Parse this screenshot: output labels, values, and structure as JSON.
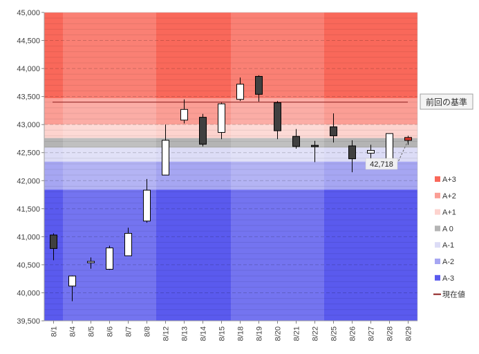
{
  "chart_data": {
    "type": "candlestick",
    "ylim": [
      39500,
      45000
    ],
    "categories": [
      "8/1",
      "8/4",
      "8/5",
      "8/6",
      "8/7",
      "8/8",
      "8/12",
      "8/13",
      "8/14",
      "8/15",
      "8/18",
      "8/19",
      "8/20",
      "8/21",
      "8/22",
      "8/25",
      "8/26",
      "8/27",
      "8/28",
      "8/29"
    ],
    "ohlc": [
      {
        "date": "8/1",
        "open": 41030,
        "high": 41060,
        "low": 40580,
        "close": 40790
      },
      {
        "date": "8/4",
        "open": 40120,
        "high": 40310,
        "low": 39850,
        "close": 40300
      },
      {
        "date": "8/5",
        "open": 40540,
        "high": 40630,
        "low": 40430,
        "close": 40560
      },
      {
        "date": "8/6",
        "open": 40420,
        "high": 40840,
        "low": 40410,
        "close": 40800
      },
      {
        "date": "8/7",
        "open": 40660,
        "high": 41160,
        "low": 40660,
        "close": 41060
      },
      {
        "date": "8/8",
        "open": 41280,
        "high": 42030,
        "low": 41250,
        "close": 41830
      },
      {
        "date": "8/12",
        "open": 42100,
        "high": 43000,
        "low": 42100,
        "close": 42720
      },
      {
        "date": "8/13",
        "open": 43080,
        "high": 43450,
        "low": 43020,
        "close": 43270
      },
      {
        "date": "8/14",
        "open": 43130,
        "high": 43190,
        "low": 42610,
        "close": 42650
      },
      {
        "date": "8/15",
        "open": 42860,
        "high": 43390,
        "low": 42740,
        "close": 43370
      },
      {
        "date": "8/18",
        "open": 43450,
        "high": 43840,
        "low": 43420,
        "close": 43720
      },
      {
        "date": "8/19",
        "open": 43860,
        "high": 43880,
        "low": 43410,
        "close": 43540
      },
      {
        "date": "8/20",
        "open": 43390,
        "high": 43420,
        "low": 42740,
        "close": 42890
      },
      {
        "date": "8/21",
        "open": 42790,
        "high": 42920,
        "low": 42570,
        "close": 42610
      },
      {
        "date": "8/22",
        "open": 42630,
        "high": 42710,
        "low": 42330,
        "close": 42620
      },
      {
        "date": "8/25",
        "open": 42960,
        "high": 43200,
        "low": 42680,
        "close": 42800
      },
      {
        "date": "8/26",
        "open": 42620,
        "high": 42720,
        "low": 42150,
        "close": 42390
      },
      {
        "date": "8/27",
        "open": 42490,
        "high": 42640,
        "low": 42370,
        "close": 42540
      },
      {
        "date": "8/28",
        "open": 42340,
        "high": 42840,
        "low": 42340,
        "close": 42840
      },
      {
        "date": "8/29",
        "open": 42770,
        "high": 42800,
        "low": 42640,
        "close": 42718
      }
    ],
    "yticks": [
      39500,
      40000,
      40500,
      41000,
      41500,
      42000,
      42500,
      43000,
      43500,
      44000,
      44500,
      45000
    ],
    "ytick_labels": [
      "39,500",
      "40,000",
      "40,500",
      "41,000",
      "41,500",
      "42,000",
      "42,500",
      "43,000",
      "43,500",
      "44,000",
      "44,500",
      "45,000"
    ],
    "reference_line": {
      "value": 43400,
      "label": "前回の基準"
    },
    "current_value": {
      "value": 42718,
      "label": "42,718"
    },
    "bands": [
      {
        "name": "A+3",
        "from": 43470,
        "to": 45000,
        "color": "#f9685a"
      },
      {
        "name": "A+2",
        "from": 43000,
        "to": 43470,
        "color": "#fb9e95"
      },
      {
        "name": "A+1",
        "from": 42760,
        "to": 43000,
        "color": "#fdd3ce"
      },
      {
        "name": "A 0",
        "from": 42590,
        "to": 42760,
        "color": "#b4b4b4"
      },
      {
        "name": "A-1",
        "from": 42340,
        "to": 42590,
        "color": "#dcdcf6"
      },
      {
        "name": "A-2",
        "from": 41840,
        "to": 42340,
        "color": "#a6a6f2"
      },
      {
        "name": "A-3",
        "from": 39500,
        "to": 41840,
        "color": "#5a5aee"
      }
    ],
    "legend": [
      {
        "label": "A+3",
        "color": "#f9685a",
        "kind": "box"
      },
      {
        "label": "A+2",
        "color": "#fb9e95",
        "kind": "box"
      },
      {
        "label": "A+1",
        "color": "#fdd3ce",
        "kind": "box"
      },
      {
        "label": "A 0",
        "color": "#b4b4b4",
        "kind": "box"
      },
      {
        "label": "A-1",
        "color": "#dcdcf6",
        "kind": "box"
      },
      {
        "label": "A-2",
        "color": "#a6a6f2",
        "kind": "box"
      },
      {
        "label": "A-3",
        "color": "#5a5aee",
        "kind": "box"
      },
      {
        "label": "現在値",
        "color": "#8b1a1a",
        "kind": "line"
      }
    ],
    "legend_position": "right",
    "grid": true,
    "colors": {
      "up": "#ffffff",
      "down": "#404040",
      "latest": "#d9372b",
      "reference": "#8b1a1a",
      "shade": "#ffffff"
    }
  }
}
